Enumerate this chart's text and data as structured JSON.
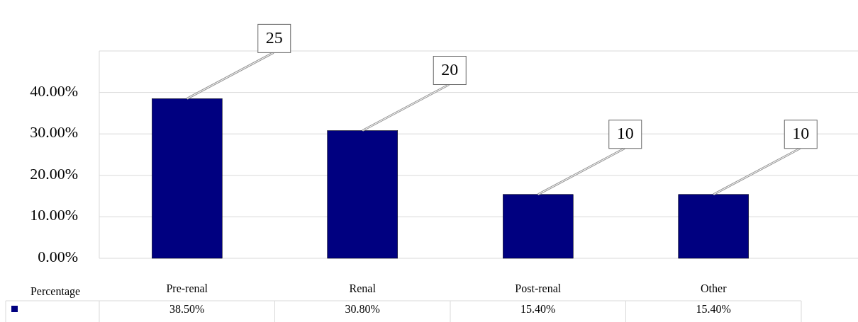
{
  "chart_data": {
    "type": "bar",
    "categories": [
      "Pre-renal",
      "Renal",
      "Post-renal",
      "Other"
    ],
    "series": [
      {
        "name": "Percentage",
        "color": "#000080",
        "values": [
          38.5,
          30.8,
          15.4,
          15.4
        ],
        "value_labels": [
          "38.50%",
          "30.80%",
          "15.40%",
          "15.40%"
        ]
      }
    ],
    "ylim": [
      0,
      50
    ],
    "yticks": [
      {
        "value": 0,
        "label": "0.00%"
      },
      {
        "value": 10,
        "label": "10.00%"
      },
      {
        "value": 20,
        "label": "20.00%"
      },
      {
        "value": 30,
        "label": "30.00%"
      },
      {
        "value": 40,
        "label": "40.00%"
      },
      {
        "value": 50,
        "label": null
      }
    ],
    "grid": "y",
    "legend": "bottom",
    "annotations": [
      {
        "text": "25",
        "x": "Pre-renal",
        "y": 38.5
      },
      {
        "text": "20",
        "x": "Renal",
        "y": 30.8
      },
      {
        "text": "10",
        "x": "Post-renal",
        "y": 15.4
      },
      {
        "text": "10",
        "x": "Other",
        "y": 15.4
      }
    ]
  }
}
